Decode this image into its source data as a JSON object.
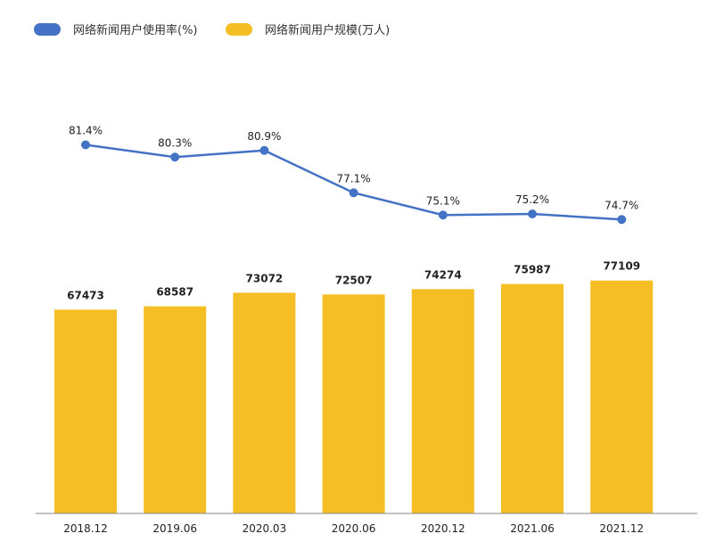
{
  "chart_data": {
    "type": "bar",
    "categories": [
      "2018.12",
      "2019.06",
      "2020.03",
      "2020.06",
      "2020.12",
      "2021.06",
      "2021.12"
    ],
    "series": [
      {
        "name": "网络新闻用户规模(万人)",
        "type": "bar",
        "values": [
          67473,
          68587,
          73072,
          72507,
          74274,
          75987,
          77109
        ],
        "value_labels": [
          "67473",
          "68587",
          "73072",
          "72507",
          "74274",
          "75987",
          "77109"
        ],
        "color": "#F5BE24"
      },
      {
        "name": "网络新闻用户使用率(%)",
        "type": "line",
        "values": [
          81.4,
          80.3,
          80.9,
          77.1,
          75.1,
          75.2,
          74.7
        ],
        "value_labels": [
          "81.4%",
          "80.3%",
          "80.9%",
          "77.1%",
          "75.1%",
          "75.2%",
          "74.7%"
        ],
        "color": "#4472C4"
      }
    ],
    "legend": [
      {
        "label": "网络新闻用户使用率(%)",
        "color": "#4472C4"
      },
      {
        "label": "网络新闻用户规模(万人)",
        "color": "#F5BE24"
      }
    ],
    "legend_position": "top-left",
    "grid": false,
    "bar_ylim": [
      0,
      103000
    ],
    "line_ylim": [
      60,
      90
    ]
  }
}
